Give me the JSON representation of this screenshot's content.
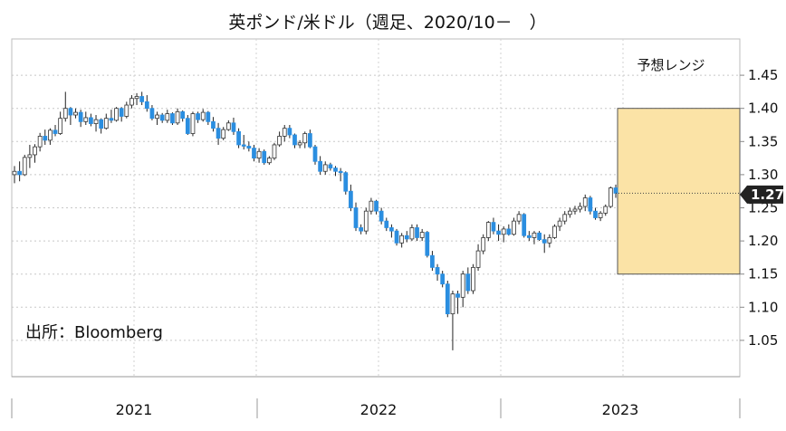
{
  "chart_data": {
    "type": "candlestick",
    "title": "英ポンド/米ドル（週足、2020/10－　）",
    "source": "出所：Bloomberg",
    "ylim": [
      1.0,
      1.47
    ],
    "y_ticks": [
      "1.45",
      "1.40",
      "1.35",
      "1.30",
      "1.25",
      "1.20",
      "1.15",
      "1.10",
      "1.05"
    ],
    "x_labels": [
      "2021",
      "2022",
      "2023"
    ],
    "grid": true,
    "forecast_range": {
      "label": "予想レンジ",
      "low": 1.15,
      "high": 1.4
    },
    "last_value": {
      "label": "1.27",
      "value": 1.272
    },
    "colors": {
      "up": "#ffffff",
      "down": "#2b8ee0",
      "wick": "#222222",
      "range_fill": "#fbe3a6",
      "range_border": "#555555",
      "badge": "#222222"
    },
    "candles": [
      {
        "o": 1.3,
        "h": 1.313,
        "l": 1.287,
        "c": 1.305
      },
      {
        "o": 1.305,
        "h": 1.32,
        "l": 1.29,
        "c": 1.3
      },
      {
        "o": 1.3,
        "h": 1.33,
        "l": 1.298,
        "c": 1.326
      },
      {
        "o": 1.326,
        "h": 1.345,
        "l": 1.31,
        "c": 1.33
      },
      {
        "o": 1.33,
        "h": 1.346,
        "l": 1.318,
        "c": 1.342
      },
      {
        "o": 1.342,
        "h": 1.363,
        "l": 1.335,
        "c": 1.358
      },
      {
        "o": 1.358,
        "h": 1.368,
        "l": 1.345,
        "c": 1.352
      },
      {
        "o": 1.352,
        "h": 1.37,
        "l": 1.345,
        "c": 1.367
      },
      {
        "o": 1.367,
        "h": 1.375,
        "l": 1.358,
        "c": 1.362
      },
      {
        "o": 1.362,
        "h": 1.395,
        "l": 1.36,
        "c": 1.385
      },
      {
        "o": 1.385,
        "h": 1.425,
        "l": 1.38,
        "c": 1.4
      },
      {
        "o": 1.4,
        "h": 1.402,
        "l": 1.375,
        "c": 1.39
      },
      {
        "o": 1.39,
        "h": 1.4,
        "l": 1.385,
        "c": 1.394
      },
      {
        "o": 1.394,
        "h": 1.398,
        "l": 1.372,
        "c": 1.38
      },
      {
        "o": 1.38,
        "h": 1.395,
        "l": 1.375,
        "c": 1.386
      },
      {
        "o": 1.386,
        "h": 1.392,
        "l": 1.373,
        "c": 1.377
      },
      {
        "o": 1.377,
        "h": 1.39,
        "l": 1.365,
        "c": 1.383
      },
      {
        "o": 1.383,
        "h": 1.385,
        "l": 1.362,
        "c": 1.37
      },
      {
        "o": 1.37,
        "h": 1.392,
        "l": 1.368,
        "c": 1.385
      },
      {
        "o": 1.385,
        "h": 1.398,
        "l": 1.378,
        "c": 1.382
      },
      {
        "o": 1.382,
        "h": 1.402,
        "l": 1.38,
        "c": 1.4
      },
      {
        "o": 1.4,
        "h": 1.402,
        "l": 1.38,
        "c": 1.388
      },
      {
        "o": 1.388,
        "h": 1.41,
        "l": 1.385,
        "c": 1.405
      },
      {
        "o": 1.405,
        "h": 1.42,
        "l": 1.4,
        "c": 1.415
      },
      {
        "o": 1.415,
        "h": 1.423,
        "l": 1.405,
        "c": 1.418
      },
      {
        "o": 1.418,
        "h": 1.425,
        "l": 1.405,
        "c": 1.41
      },
      {
        "o": 1.41,
        "h": 1.42,
        "l": 1.395,
        "c": 1.4
      },
      {
        "o": 1.4,
        "h": 1.405,
        "l": 1.382,
        "c": 1.385
      },
      {
        "o": 1.385,
        "h": 1.395,
        "l": 1.375,
        "c": 1.39
      },
      {
        "o": 1.39,
        "h": 1.393,
        "l": 1.378,
        "c": 1.382
      },
      {
        "o": 1.382,
        "h": 1.398,
        "l": 1.378,
        "c": 1.392
      },
      {
        "o": 1.392,
        "h": 1.394,
        "l": 1.375,
        "c": 1.378
      },
      {
        "o": 1.378,
        "h": 1.4,
        "l": 1.375,
        "c": 1.395
      },
      {
        "o": 1.395,
        "h": 1.397,
        "l": 1.38,
        "c": 1.385
      },
      {
        "o": 1.385,
        "h": 1.39,
        "l": 1.36,
        "c": 1.362
      },
      {
        "o": 1.362,
        "h": 1.395,
        "l": 1.358,
        "c": 1.392
      },
      {
        "o": 1.392,
        "h": 1.395,
        "l": 1.378,
        "c": 1.383
      },
      {
        "o": 1.383,
        "h": 1.399,
        "l": 1.38,
        "c": 1.394
      },
      {
        "o": 1.394,
        "h": 1.396,
        "l": 1.375,
        "c": 1.38
      },
      {
        "o": 1.38,
        "h": 1.387,
        "l": 1.365,
        "c": 1.37
      },
      {
        "o": 1.37,
        "h": 1.378,
        "l": 1.345,
        "c": 1.355
      },
      {
        "o": 1.355,
        "h": 1.372,
        "l": 1.352,
        "c": 1.368
      },
      {
        "o": 1.368,
        "h": 1.382,
        "l": 1.366,
        "c": 1.378
      },
      {
        "o": 1.378,
        "h": 1.386,
        "l": 1.36,
        "c": 1.365
      },
      {
        "o": 1.365,
        "h": 1.37,
        "l": 1.34,
        "c": 1.345
      },
      {
        "o": 1.345,
        "h": 1.36,
        "l": 1.338,
        "c": 1.343
      },
      {
        "o": 1.343,
        "h": 1.35,
        "l": 1.335,
        "c": 1.34
      },
      {
        "o": 1.34,
        "h": 1.345,
        "l": 1.32,
        "c": 1.325
      },
      {
        "o": 1.325,
        "h": 1.34,
        "l": 1.318,
        "c": 1.335
      },
      {
        "o": 1.335,
        "h": 1.338,
        "l": 1.315,
        "c": 1.318
      },
      {
        "o": 1.318,
        "h": 1.328,
        "l": 1.315,
        "c": 1.325
      },
      {
        "o": 1.325,
        "h": 1.348,
        "l": 1.322,
        "c": 1.345
      },
      {
        "o": 1.345,
        "h": 1.365,
        "l": 1.342,
        "c": 1.358
      },
      {
        "o": 1.358,
        "h": 1.375,
        "l": 1.35,
        "c": 1.37
      },
      {
        "o": 1.37,
        "h": 1.375,
        "l": 1.355,
        "c": 1.36
      },
      {
        "o": 1.36,
        "h": 1.362,
        "l": 1.34,
        "c": 1.345
      },
      {
        "o": 1.345,
        "h": 1.352,
        "l": 1.34,
        "c": 1.348
      },
      {
        "o": 1.348,
        "h": 1.365,
        "l": 1.34,
        "c": 1.362
      },
      {
        "o": 1.362,
        "h": 1.368,
        "l": 1.34,
        "c": 1.342
      },
      {
        "o": 1.342,
        "h": 1.345,
        "l": 1.315,
        "c": 1.32
      },
      {
        "o": 1.32,
        "h": 1.328,
        "l": 1.3,
        "c": 1.305
      },
      {
        "o": 1.305,
        "h": 1.32,
        "l": 1.3,
        "c": 1.315
      },
      {
        "o": 1.315,
        "h": 1.318,
        "l": 1.306,
        "c": 1.31
      },
      {
        "o": 1.31,
        "h": 1.313,
        "l": 1.298,
        "c": 1.305
      },
      {
        "o": 1.305,
        "h": 1.31,
        "l": 1.29,
        "c": 1.303
      },
      {
        "o": 1.303,
        "h": 1.305,
        "l": 1.27,
        "c": 1.275
      },
      {
        "o": 1.275,
        "h": 1.285,
        "l": 1.245,
        "c": 1.25
      },
      {
        "o": 1.25,
        "h": 1.258,
        "l": 1.215,
        "c": 1.22
      },
      {
        "o": 1.22,
        "h": 1.225,
        "l": 1.21,
        "c": 1.215
      },
      {
        "o": 1.215,
        "h": 1.25,
        "l": 1.21,
        "c": 1.245
      },
      {
        "o": 1.245,
        "h": 1.265,
        "l": 1.24,
        "c": 1.26
      },
      {
        "o": 1.26,
        "h": 1.262,
        "l": 1.24,
        "c": 1.245
      },
      {
        "o": 1.245,
        "h": 1.25,
        "l": 1.225,
        "c": 1.23
      },
      {
        "o": 1.23,
        "h": 1.235,
        "l": 1.215,
        "c": 1.22
      },
      {
        "o": 1.22,
        "h": 1.225,
        "l": 1.205,
        "c": 1.215
      },
      {
        "o": 1.215,
        "h": 1.218,
        "l": 1.193,
        "c": 1.197
      },
      {
        "o": 1.197,
        "h": 1.212,
        "l": 1.19,
        "c": 1.208
      },
      {
        "o": 1.208,
        "h": 1.215,
        "l": 1.198,
        "c": 1.203
      },
      {
        "o": 1.203,
        "h": 1.225,
        "l": 1.2,
        "c": 1.22
      },
      {
        "o": 1.22,
        "h": 1.225,
        "l": 1.2,
        "c": 1.205
      },
      {
        "o": 1.205,
        "h": 1.218,
        "l": 1.2,
        "c": 1.213
      },
      {
        "o": 1.213,
        "h": 1.215,
        "l": 1.175,
        "c": 1.178
      },
      {
        "o": 1.178,
        "h": 1.185,
        "l": 1.155,
        "c": 1.16
      },
      {
        "o": 1.16,
        "h": 1.165,
        "l": 1.14,
        "c": 1.15
      },
      {
        "o": 1.15,
        "h": 1.155,
        "l": 1.13,
        "c": 1.135
      },
      {
        "o": 1.135,
        "h": 1.14,
        "l": 1.085,
        "c": 1.09
      },
      {
        "o": 1.09,
        "h": 1.125,
        "l": 1.035,
        "c": 1.12
      },
      {
        "o": 1.12,
        "h": 1.125,
        "l": 1.09,
        "c": 1.115
      },
      {
        "o": 1.115,
        "h": 1.155,
        "l": 1.1,
        "c": 1.15
      },
      {
        "o": 1.15,
        "h": 1.16,
        "l": 1.12,
        "c": 1.125
      },
      {
        "o": 1.125,
        "h": 1.165,
        "l": 1.12,
        "c": 1.16
      },
      {
        "o": 1.16,
        "h": 1.195,
        "l": 1.155,
        "c": 1.185
      },
      {
        "o": 1.185,
        "h": 1.21,
        "l": 1.18,
        "c": 1.205
      },
      {
        "o": 1.205,
        "h": 1.23,
        "l": 1.2,
        "c": 1.228
      },
      {
        "o": 1.228,
        "h": 1.235,
        "l": 1.21,
        "c": 1.215
      },
      {
        "o": 1.215,
        "h": 1.225,
        "l": 1.2,
        "c": 1.21
      },
      {
        "o": 1.21,
        "h": 1.222,
        "l": 1.198,
        "c": 1.218
      },
      {
        "o": 1.218,
        "h": 1.225,
        "l": 1.208,
        "c": 1.21
      },
      {
        "o": 1.21,
        "h": 1.235,
        "l": 1.208,
        "c": 1.23
      },
      {
        "o": 1.23,
        "h": 1.245,
        "l": 1.225,
        "c": 1.24
      },
      {
        "o": 1.24,
        "h": 1.242,
        "l": 1.205,
        "c": 1.208
      },
      {
        "o": 1.208,
        "h": 1.215,
        "l": 1.2,
        "c": 1.205
      },
      {
        "o": 1.205,
        "h": 1.215,
        "l": 1.195,
        "c": 1.212
      },
      {
        "o": 1.212,
        "h": 1.215,
        "l": 1.2,
        "c": 1.202
      },
      {
        "o": 1.202,
        "h": 1.21,
        "l": 1.182,
        "c": 1.197
      },
      {
        "o": 1.197,
        "h": 1.21,
        "l": 1.19,
        "c": 1.205
      },
      {
        "o": 1.205,
        "h": 1.225,
        "l": 1.203,
        "c": 1.222
      },
      {
        "o": 1.222,
        "h": 1.235,
        "l": 1.215,
        "c": 1.23
      },
      {
        "o": 1.23,
        "h": 1.245,
        "l": 1.225,
        "c": 1.24
      },
      {
        "o": 1.24,
        "h": 1.25,
        "l": 1.235,
        "c": 1.245
      },
      {
        "o": 1.245,
        "h": 1.253,
        "l": 1.24,
        "c": 1.248
      },
      {
        "o": 1.248,
        "h": 1.258,
        "l": 1.243,
        "c": 1.252
      },
      {
        "o": 1.252,
        "h": 1.27,
        "l": 1.245,
        "c": 1.265
      },
      {
        "o": 1.265,
        "h": 1.268,
        "l": 1.24,
        "c": 1.245
      },
      {
        "o": 1.245,
        "h": 1.25,
        "l": 1.232,
        "c": 1.235
      },
      {
        "o": 1.235,
        "h": 1.245,
        "l": 1.23,
        "c": 1.242
      },
      {
        "o": 1.242,
        "h": 1.255,
        "l": 1.238,
        "c": 1.252
      },
      {
        "o": 1.252,
        "h": 1.282,
        "l": 1.25,
        "c": 1.28
      },
      {
        "o": 1.28,
        "h": 1.285,
        "l": 1.265,
        "c": 1.272
      }
    ]
  }
}
